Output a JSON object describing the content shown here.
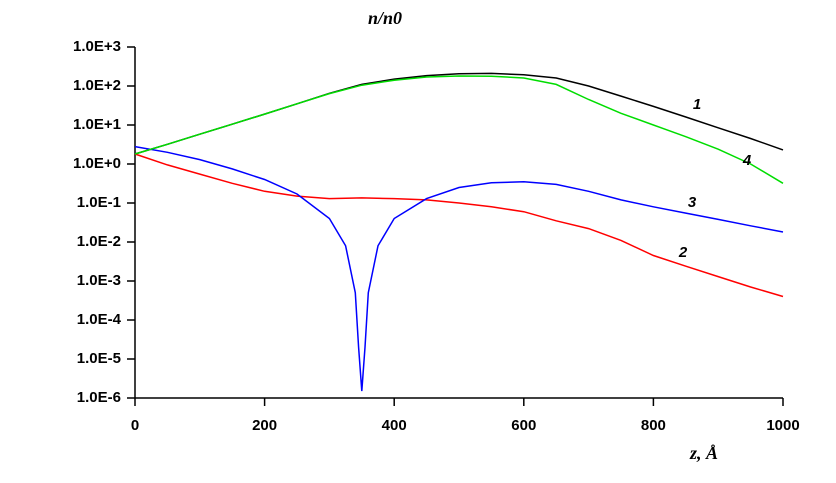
{
  "chart_data": {
    "type": "line",
    "y_label": "n/n0",
    "x_label": "z, Å",
    "xlim": [
      0,
      1000
    ],
    "xticks": [
      0,
      200,
      400,
      600,
      800,
      1000
    ],
    "ylim": [
      1e-06,
      1000
    ],
    "log_y": true,
    "yticks": [
      {
        "value": 1e-06,
        "label": "1.0E-6"
      },
      {
        "value": 1e-05,
        "label": "1.0E-5"
      },
      {
        "value": 0.0001,
        "label": "1.0E-4"
      },
      {
        "value": 0.001,
        "label": "1.0E-3"
      },
      {
        "value": 0.01,
        "label": "1.0E-2"
      },
      {
        "value": 0.1,
        "label": "1.0E-1"
      },
      {
        "value": 1,
        "label": "1.0E+0"
      },
      {
        "value": 10,
        "label": "1.0E+1"
      },
      {
        "value": 100,
        "label": "1.0E+2"
      },
      {
        "value": 1000,
        "label": "1.0E+3"
      }
    ],
    "series": [
      {
        "name": "1",
        "color": "#000000",
        "x": [
          0,
          50,
          100,
          150,
          200,
          250,
          300,
          350,
          400,
          450,
          500,
          550,
          600,
          650,
          700,
          750,
          800,
          850,
          900,
          950,
          1000
        ],
        "values": [
          1.8,
          3.2,
          5.8,
          10.5,
          19,
          35,
          65,
          110,
          150,
          185,
          205,
          210,
          195,
          160,
          100,
          55,
          30,
          16,
          8.5,
          4.5,
          2.3
        ]
      },
      {
        "name": "2",
        "color": "#ff0000",
        "x": [
          0,
          50,
          100,
          150,
          200,
          250,
          300,
          350,
          400,
          450,
          500,
          550,
          600,
          650,
          700,
          750,
          800,
          850,
          900,
          950,
          1000
        ],
        "values": [
          1.8,
          0.95,
          0.55,
          0.32,
          0.2,
          0.15,
          0.13,
          0.135,
          0.13,
          0.12,
          0.1,
          0.08,
          0.06,
          0.035,
          0.022,
          0.011,
          0.0045,
          0.0024,
          0.0013,
          0.0007,
          0.0004
        ]
      },
      {
        "name": "3",
        "color": "#0000ff",
        "x": [
          0,
          50,
          100,
          150,
          200,
          250,
          300,
          325,
          340,
          345,
          350,
          355,
          360,
          375,
          400,
          450,
          500,
          550,
          600,
          650,
          700,
          750,
          800,
          850,
          900,
          950,
          1000
        ],
        "values": [
          2.8,
          2.0,
          1.3,
          0.75,
          0.4,
          0.17,
          0.04,
          0.008,
          0.0005,
          2e-05,
          1.5e-06,
          2e-05,
          0.0005,
          0.008,
          0.04,
          0.13,
          0.25,
          0.33,
          0.35,
          0.3,
          0.2,
          0.12,
          0.08,
          0.055,
          0.038,
          0.026,
          0.018
        ]
      },
      {
        "name": "4",
        "color": "#00dd00",
        "x": [
          0,
          50,
          100,
          150,
          200,
          250,
          300,
          350,
          400,
          450,
          500,
          550,
          600,
          650,
          700,
          750,
          800,
          850,
          900,
          950,
          1000
        ],
        "values": [
          1.8,
          3.2,
          5.8,
          10.5,
          19,
          35,
          64,
          105,
          140,
          170,
          180,
          178,
          160,
          110,
          45,
          20,
          10,
          5,
          2.4,
          1.0,
          0.32
        ]
      }
    ]
  }
}
